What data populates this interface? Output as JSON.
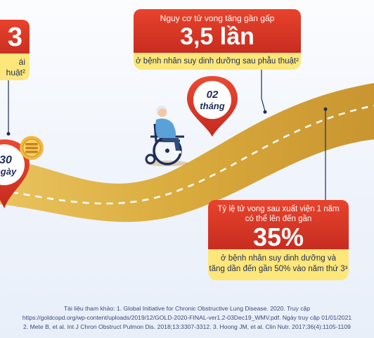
{
  "left_card": {
    "big": "3",
    "line1": "ái",
    "line2": "huật²"
  },
  "top_card": {
    "subtitle": "Nguy cơ tử vong tăng gần gấp",
    "big": "3,5 lần",
    "note": "ở bệnh nhân suy dinh dưỡng sau phẫu thuật²"
  },
  "right_card": {
    "line1": "Tỷ lệ tử vong sau xuất viện 1 năm",
    "line2": "có thể lên đến gần",
    "big": "35%",
    "note1": "ở bệnh nhân suy dinh dưỡng và",
    "note2": "tăng dần đến gần 50% vào năm thứ 3³"
  },
  "pin_months": {
    "num": "02",
    "unit": "tháng"
  },
  "pin_days": {
    "num": "30",
    "unit": "ngày"
  },
  "references": {
    "line1": "Tài liệu tham khảo: 1. Global Initiative for Chronic Obstructive Lung Disease. 2020. Truy cập",
    "line2": "https://goldcopd.org/wp-content/uploads/2019/12/GOLD-2020-FINAL-ver1.2-03Dec19_WMV.pdf. Ngày truy cập 01/01/2021",
    "line3": "2. Mete B, et al. Int J Chron Obstruct Pulmon Dis. 2018;13:3307-3312. 3. Hoong JM, et al. Clin Nutr. 2017;36(4):1105-1109"
  },
  "colors": {
    "red": "#d7372a",
    "yellow": "#fde77a",
    "road": "#d9aa3c",
    "navy": "#1e2d5a"
  }
}
